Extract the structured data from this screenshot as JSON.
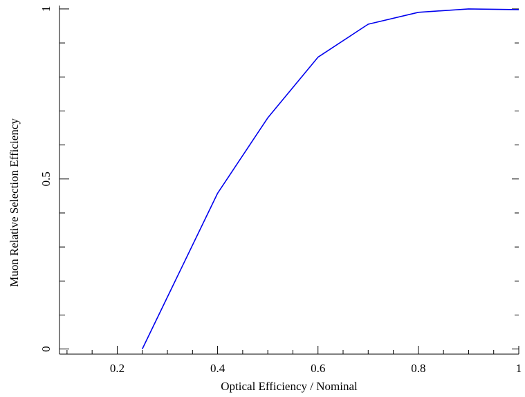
{
  "chart_data": {
    "type": "line",
    "title": "",
    "xlabel": "Optical Efficiency / Nominal",
    "ylabel": "Muon Relative Selection Efficiency",
    "xlim": [
      0.085,
      1.0
    ],
    "ylim": [
      -0.015,
      1.01
    ],
    "xticks": [
      0.2,
      0.4,
      0.6,
      0.8,
      1.0
    ],
    "xtick_labels": [
      "0.2",
      "0.4",
      "0.6",
      "0.8",
      "1"
    ],
    "yticks": [
      0,
      0.5,
      1.0
    ],
    "ytick_labels": [
      "0",
      "0.5",
      "1"
    ],
    "grid": false,
    "line_color": "#0000ee",
    "series": [
      {
        "x": [
          0.25,
          0.4,
          0.5,
          0.6,
          0.7,
          0.8,
          0.9,
          1.0
        ],
        "y": [
          0.0,
          0.458,
          0.68,
          0.858,
          0.955,
          0.99,
          1.0,
          0.998
        ]
      }
    ]
  }
}
